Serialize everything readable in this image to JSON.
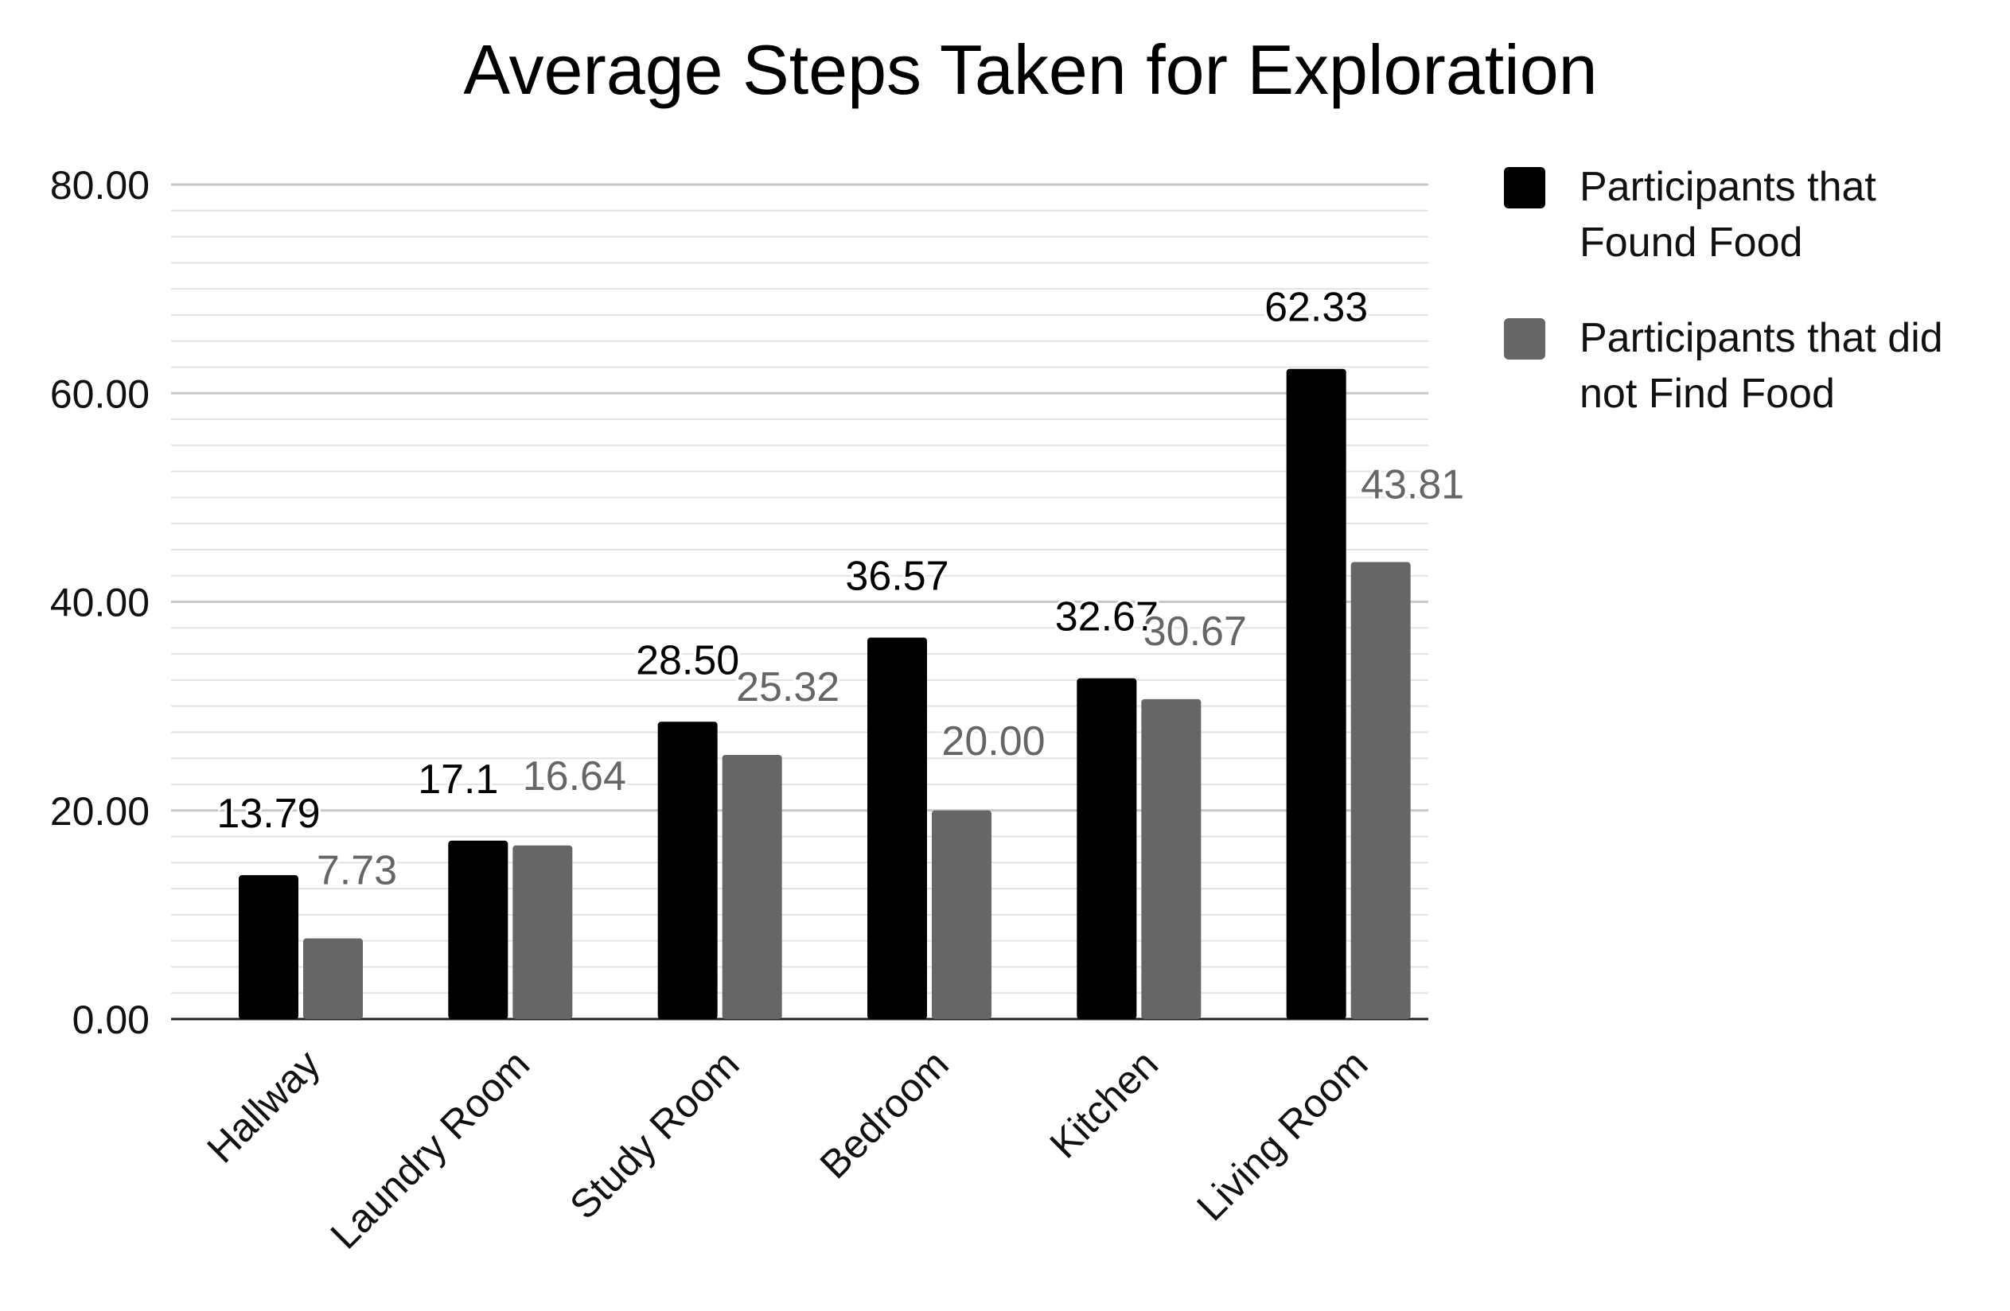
{
  "chart_data": {
    "type": "bar",
    "title": "Average Steps Taken for Exploration",
    "xlabel": "",
    "ylabel": "",
    "ylim": [
      0,
      80
    ],
    "yticks": [
      "0.00",
      "20.00",
      "40.00",
      "60.00",
      "80.00"
    ],
    "grid": true,
    "legend_position": "right",
    "categories": [
      "Hallway",
      "Laundry Room",
      "Study Room",
      "Bedroom",
      "Kitchen",
      "Living Room"
    ],
    "series": [
      {
        "name": "Participants that Found Food",
        "legend_lines": [
          "Participants that",
          "Found Food"
        ],
        "color": "#000000",
        "label_color": "#000000",
        "values": [
          13.79,
          17.1,
          28.5,
          36.57,
          32.67,
          62.33
        ],
        "labels": [
          "13.79",
          "17.1",
          "28.50",
          "36.57",
          "32.67",
          "62.33"
        ]
      },
      {
        "name": "Participants that did not Find Food",
        "legend_lines": [
          "Participants that did",
          "not Find Food"
        ],
        "color": "#666666",
        "label_color": "#666666",
        "values": [
          7.73,
          16.64,
          25.32,
          20.0,
          30.67,
          43.81
        ],
        "labels": [
          "7.73",
          "16.64",
          "25.32",
          "20.00",
          "30.67",
          "43.81"
        ]
      }
    ]
  }
}
